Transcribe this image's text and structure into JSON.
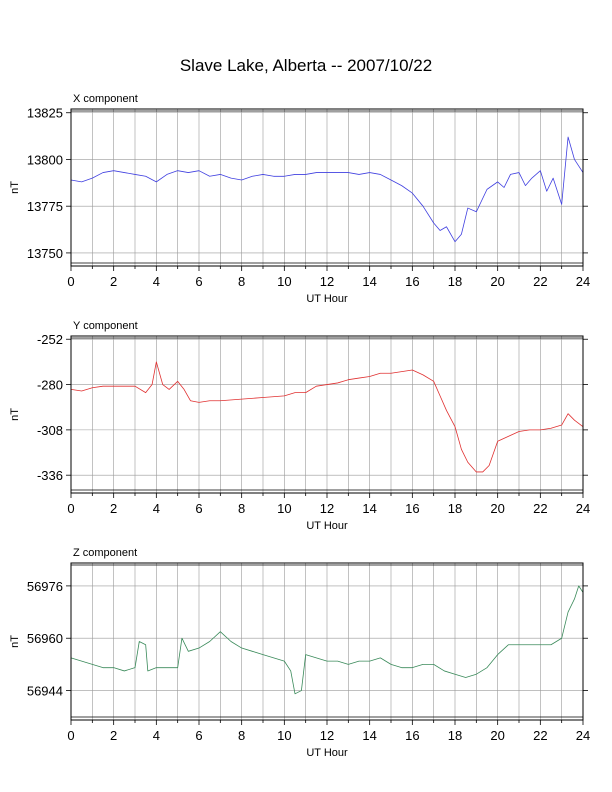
{
  "title": "Slave Lake, Alberta -- 2007/10/22",
  "chart_data": [
    {
      "type": "line",
      "panel_label": "X component",
      "xlabel": "UT Hour",
      "ylabel": "nT",
      "xlim": [
        0,
        24
      ],
      "ylim": [
        13743,
        13827
      ],
      "xticks": [
        0,
        2,
        4,
        6,
        8,
        10,
        12,
        14,
        16,
        18,
        20,
        22,
        24
      ],
      "yticks": [
        13750,
        13775,
        13800,
        13825
      ],
      "grid": true,
      "color": "#4040e0",
      "x": [
        0,
        0.5,
        1,
        1.5,
        2,
        2.5,
        3,
        3.5,
        4,
        4.5,
        5,
        5.5,
        6,
        6.5,
        7,
        7.5,
        8,
        8.5,
        9,
        9.5,
        10,
        10.5,
        11,
        11.5,
        12,
        12.5,
        13,
        13.5,
        14,
        14.5,
        15,
        15.5,
        16,
        16.5,
        17,
        17.3,
        17.6,
        18,
        18.3,
        18.6,
        19,
        19.5,
        20,
        20.3,
        20.6,
        21,
        21.3,
        21.6,
        22,
        22.3,
        22.6,
        23,
        23.3,
        23.6,
        24
      ],
      "values": [
        13789,
        13788,
        13790,
        13793,
        13794,
        13793,
        13792,
        13791,
        13788,
        13792,
        13794,
        13793,
        13794,
        13791,
        13792,
        13790,
        13789,
        13791,
        13792,
        13791,
        13791,
        13792,
        13792,
        13793,
        13793,
        13793,
        13793,
        13792,
        13793,
        13792,
        13789,
        13786,
        13782,
        13775,
        13766,
        13762,
        13764,
        13756,
        13760,
        13774,
        13772,
        13784,
        13788,
        13785,
        13792,
        13793,
        13786,
        13790,
        13794,
        13783,
        13790,
        13776,
        13812,
        13800,
        13793
      ]
    },
    {
      "type": "line",
      "panel_label": "Y component",
      "xlabel": "UT Hour",
      "ylabel": "nT",
      "xlim": [
        0,
        24
      ],
      "ylim": [
        -347,
        -250
      ],
      "xticks": [
        0,
        2,
        4,
        6,
        8,
        10,
        12,
        14,
        16,
        18,
        20,
        22,
        24
      ],
      "yticks": [
        -252,
        -280,
        -308,
        -336
      ],
      "grid": true,
      "color": "#e03030",
      "x": [
        0,
        0.5,
        1,
        1.5,
        2,
        2.5,
        3,
        3.5,
        3.8,
        4,
        4.3,
        4.6,
        5,
        5.3,
        5.6,
        6,
        6.5,
        7,
        8,
        9,
        10,
        10.5,
        11,
        11.5,
        12,
        12.5,
        13,
        13.5,
        14,
        14.5,
        15,
        15.5,
        16,
        16.5,
        17,
        17.3,
        17.6,
        18,
        18.3,
        18.6,
        19,
        19.3,
        19.6,
        20,
        20.5,
        21,
        21.5,
        22,
        22.5,
        23,
        23.3,
        23.6,
        24
      ],
      "values": [
        -283,
        -284,
        -282,
        -281,
        -281,
        -281,
        -281,
        -285,
        -280,
        -266,
        -280,
        -283,
        -278,
        -283,
        -290,
        -291,
        -290,
        -290,
        -289,
        -288,
        -287,
        -285,
        -285,
        -281,
        -280,
        -279,
        -277,
        -276,
        -275,
        -273,
        -273,
        -272,
        -271,
        -274,
        -278,
        -287,
        -296,
        -306,
        -320,
        -328,
        -334,
        -334,
        -330,
        -315,
        -312,
        -309,
        -308,
        -308,
        -307,
        -305,
        -298,
        -302,
        -306
      ]
    },
    {
      "type": "line",
      "panel_label": "Z component",
      "xlabel": "UT Hour",
      "ylabel": "nT",
      "xlim": [
        0,
        24
      ],
      "ylim": [
        56935,
        56983
      ],
      "xticks": [
        0,
        2,
        4,
        6,
        8,
        10,
        12,
        14,
        16,
        18,
        20,
        22,
        24
      ],
      "yticks": [
        56944,
        56960,
        56976
      ],
      "grid": true,
      "color": "#3a8a5a",
      "x": [
        0,
        0.5,
        1,
        1.5,
        2,
        2.5,
        3,
        3.2,
        3.5,
        3.6,
        4,
        4.5,
        5,
        5.2,
        5.5,
        6,
        6.5,
        7,
        7.5,
        8,
        8.5,
        9,
        9.5,
        10,
        10.3,
        10.5,
        10.8,
        11,
        11.5,
        12,
        12.5,
        13,
        13.5,
        14,
        14.5,
        15,
        15.5,
        16,
        16.5,
        17,
        17.5,
        18,
        18.5,
        19,
        19.5,
        20,
        20.5,
        21,
        21.5,
        22,
        22.5,
        23,
        23.3,
        23.6,
        23.8,
        24
      ],
      "values": [
        56954,
        56953,
        56952,
        56951,
        56951,
        56950,
        56951,
        56959,
        56958,
        56950,
        56951,
        56951,
        56951,
        56960,
        56956,
        56957,
        56959,
        56962,
        56959,
        56957,
        56956,
        56955,
        56954,
        56953,
        56950,
        56943,
        56944,
        56955,
        56954,
        56953,
        56953,
        56952,
        56953,
        56953,
        56954,
        56952,
        56951,
        56951,
        56952,
        56952,
        56950,
        56949,
        56948,
        56949,
        56951,
        56955,
        56958,
        56958,
        56958,
        56958,
        56958,
        56960,
        56968,
        56972,
        56976,
        56974
      ]
    }
  ]
}
